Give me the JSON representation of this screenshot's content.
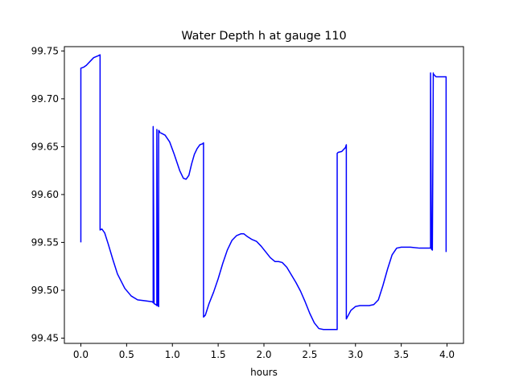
{
  "chart_data": {
    "type": "line",
    "title": "Water Depth h at gauge 110",
    "xlabel": "hours",
    "ylabel": "",
    "xlim": [
      -0.18,
      4.18
    ],
    "ylim": [
      99.4445,
      99.7545
    ],
    "xticks": [
      0.0,
      0.5,
      1.0,
      1.5,
      2.0,
      2.5,
      3.0,
      3.5,
      4.0
    ],
    "xtick_labels": [
      "0.0",
      "0.5",
      "1.0",
      "1.5",
      "2.0",
      "2.5",
      "3.0",
      "3.5",
      "4.0"
    ],
    "yticks": [
      99.45,
      99.5,
      99.55,
      99.6,
      99.65,
      99.7,
      99.75
    ],
    "ytick_labels": [
      "99.45",
      "99.50",
      "99.55",
      "99.60",
      "99.65",
      "99.70",
      "99.75"
    ],
    "grid": false,
    "colors": {
      "line": "#0000ff",
      "axes": "#000000",
      "background": "#ffffff"
    },
    "series": [
      {
        "x": [
          0.0,
          0.0,
          0.03,
          0.06,
          0.1,
          0.14,
          0.19,
          0.21,
          0.21,
          0.23,
          0.26,
          0.3,
          0.35,
          0.4,
          0.48,
          0.55,
          0.62,
          0.7,
          0.78,
          0.79,
          0.79,
          0.8,
          0.82,
          0.83,
          0.83,
          0.84,
          0.85,
          0.85,
          0.86,
          0.86,
          0.88,
          0.92,
          0.97,
          1.02,
          1.08,
          1.12,
          1.15,
          1.18,
          1.21,
          1.24,
          1.27,
          1.3,
          1.33,
          1.34,
          1.34,
          1.36,
          1.4,
          1.45,
          1.5,
          1.55,
          1.6,
          1.65,
          1.7,
          1.75,
          1.78,
          1.82,
          1.87,
          1.92,
          1.97,
          2.02,
          2.07,
          2.12,
          2.16,
          2.2,
          2.25,
          2.3,
          2.35,
          2.4,
          2.45,
          2.5,
          2.55,
          2.6,
          2.65,
          2.7,
          2.75,
          2.8,
          2.8,
          2.81,
          2.85,
          2.89,
          2.9,
          2.9,
          2.95,
          3.0,
          3.05,
          3.1,
          3.15,
          3.2,
          3.25,
          3.3,
          3.35,
          3.4,
          3.45,
          3.5,
          3.6,
          3.7,
          3.77,
          3.82,
          3.82,
          3.83,
          3.84,
          3.85,
          3.85,
          3.86,
          3.88,
          3.92,
          3.96,
          3.99,
          3.99
        ],
        "y": [
          99.55,
          99.732,
          99.733,
          99.735,
          99.739,
          99.743,
          99.745,
          99.746,
          99.563,
          99.564,
          99.56,
          99.548,
          99.532,
          99.517,
          99.502,
          99.494,
          99.49,
          99.489,
          99.488,
          99.487,
          99.671,
          99.486,
          99.485,
          99.484,
          99.668,
          99.484,
          99.483,
          99.667,
          99.666,
          99.665,
          99.664,
          99.662,
          99.655,
          99.642,
          99.625,
          99.617,
          99.616,
          99.62,
          99.632,
          99.642,
          99.648,
          99.652,
          99.653,
          99.654,
          99.472,
          99.474,
          99.486,
          99.498,
          99.512,
          99.528,
          99.542,
          99.552,
          99.557,
          99.559,
          99.559,
          99.556,
          99.553,
          99.551,
          99.546,
          99.54,
          99.534,
          99.53,
          99.53,
          99.529,
          99.524,
          99.516,
          99.508,
          99.499,
          99.488,
          99.476,
          99.466,
          99.46,
          99.459,
          99.459,
          99.459,
          99.459,
          99.643,
          99.644,
          99.645,
          99.649,
          99.652,
          99.47,
          99.479,
          99.483,
          99.484,
          99.484,
          99.484,
          99.485,
          99.49,
          99.505,
          99.522,
          99.537,
          99.544,
          99.545,
          99.545,
          99.544,
          99.544,
          99.544,
          99.727,
          99.543,
          99.542,
          99.727,
          99.726,
          99.725,
          99.723,
          99.723,
          99.723,
          99.723,
          99.54
        ]
      }
    ]
  }
}
